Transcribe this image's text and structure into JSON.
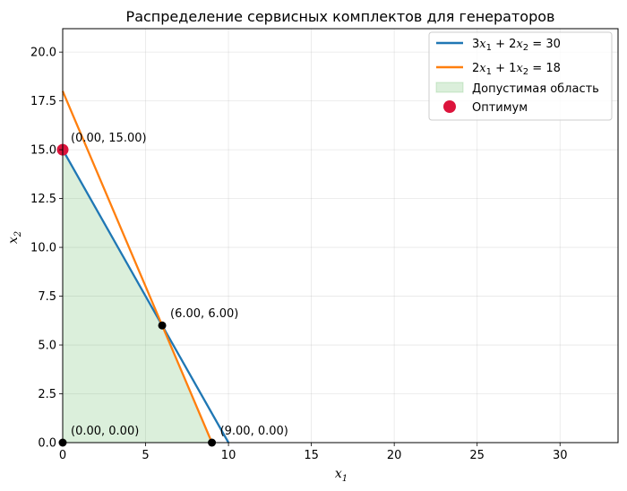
{
  "chart_data": {
    "type": "line",
    "title": "Распределение сервисных комплектов для генераторов",
    "xlabel": {
      "base": "x",
      "sub": "1"
    },
    "ylabel": {
      "base": "x",
      "sub": "2"
    },
    "xlim": [
      0,
      33.5
    ],
    "ylim": [
      0,
      21.2
    ],
    "xticks": [
      0,
      5,
      10,
      15,
      20,
      25,
      30
    ],
    "yticks": [
      "0.0",
      "2.5",
      "5.0",
      "7.5",
      "10.0",
      "12.5",
      "15.0",
      "17.5",
      "20.0"
    ],
    "grid": true,
    "legend_position": "top-right",
    "series": [
      {
        "name": "3x1 + 2x2 = 30",
        "label_parts": {
          "a": "3",
          "b": "+ 2",
          "rhs": "= 30"
        },
        "color": "#1f77b4",
        "x": [
          0,
          10
        ],
        "y": [
          15,
          0
        ]
      },
      {
        "name": "2x1 + 1x2 = 18",
        "label_parts": {
          "a": "2",
          "b": "+ 1",
          "rhs": "= 18"
        },
        "color": "#ff7f0e",
        "x": [
          0,
          9
        ],
        "y": [
          18,
          0
        ]
      }
    ],
    "feasible_region": {
      "name": "Допустимая область",
      "color": "#2ca02c",
      "vertices": [
        [
          0,
          0
        ],
        [
          0,
          15
        ],
        [
          6,
          6
        ],
        [
          9,
          0
        ]
      ]
    },
    "vertices": [
      {
        "x": 0,
        "y": 0,
        "label": "(0.00, 0.00)"
      },
      {
        "x": 0,
        "y": 15,
        "label": "(0.00, 15.00)"
      },
      {
        "x": 6,
        "y": 6,
        "label": "(6.00, 6.00)"
      },
      {
        "x": 9,
        "y": 0,
        "label": "(9.00, 0.00)"
      }
    ],
    "optimum": {
      "name": "Оптимум",
      "x": 0,
      "y": 15,
      "color": "#dc143c"
    }
  }
}
